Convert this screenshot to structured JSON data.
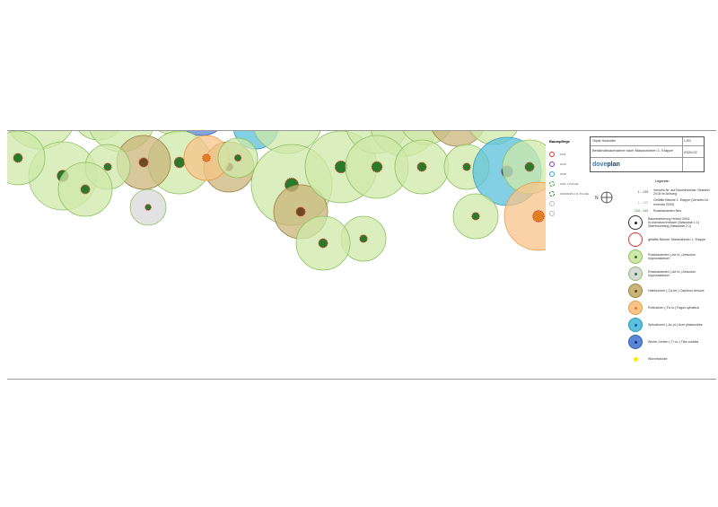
{
  "tree_care": {
    "title": "Baumpflege",
    "items": [
      {
        "label": "2011",
        "color": "#e03030"
      },
      {
        "label": "2016",
        "color": "#7040b0"
      },
      {
        "label": "2018",
        "color": "#30a0e0"
      },
      {
        "label": "2021 1.Priorität",
        "color": "#30a030"
      },
      {
        "label": "2023/2025 2./3. Priorität",
        "color": "#207020"
      },
      {
        "label": "",
        "color": "#bbbbbb"
      },
      {
        "label": "",
        "color": "#bbbbbb"
      }
    ]
  },
  "title_block": {
    "object": "Objekt: Baumallee",
    "title": "Bestandesaufnahme nach Massnahmen 1. Etappe",
    "scale": "1:200",
    "plan_no": "0320-02",
    "brand": "doveplan",
    "brand_accent": "dove",
    "brand_rest": "plan"
  },
  "north_label": "N",
  "legend": {
    "title": "Legende:",
    "refs": [
      {
        "range": "1 - 133",
        "text": "Verweis-Nr. auf Bauminventar, Bestand 2018 im Anhang",
        "color": "#333333"
      },
      {
        "range": "1 - 133",
        "text": "Gefällte Bäume 1. Etappe (Verweis-Nr. Inventar 2009)",
        "color": "#999999"
      },
      {
        "range": "134 - 143",
        "text": "Rosskastanien Neu",
        "color": "#2a6a2a"
      }
    ],
    "items": [
      {
        "label": "Baumkartierung Herbst 2004: Kronendurchmesser (Massstab 1:1) Stammumfang (Massstab 2:1)",
        "fill": "#ffffff",
        "stroke": "#333333",
        "dot": "#222222"
      },
      {
        "label": "gefällte Bäume: Massnahmen 1. Etappe",
        "fill": "#ffffff",
        "stroke": "#e03030",
        "dot": "#ffffff"
      },
      {
        "label": "Rosskastanien (-Ae hi-) Aesculus hippocastanum",
        "fill": "#cfe8a8",
        "stroke": "#8cc060",
        "dot": "#2a7a2a"
      },
      {
        "label": "Rosskastanien (-Ae hi-) Aesculus hippocastanum",
        "fill": "#d8d8d8",
        "stroke": "#8cc060",
        "dot": "#2a7a2a"
      },
      {
        "label": "Hainbuchen (-Ca be-) Carpinus betulus",
        "fill": "#c9b47a",
        "stroke": "#9a8040",
        "dot": "#6a4a20"
      },
      {
        "label": "Rotbuchen (-Fa sl-) Fagus sylvatica",
        "fill": "#f7c48a",
        "stroke": "#e89a40",
        "dot": "#e08020"
      },
      {
        "label": "Spitzahorne (-Ac pl-) Acer platanoides",
        "fill": "#5ac0dc",
        "stroke": "#2a98c0",
        "dot": "#1060a0"
      },
      {
        "label": "Winter-Linden (-Ti co-) Tilia cordata",
        "fill": "#5a86d8",
        "stroke": "#3060b0",
        "dot": "#10306a"
      },
      {
        "label": "Wurzelstöcke",
        "fill": "#ffee00",
        "stroke": "#ffee00",
        "dot": "#ffee00",
        "small": true
      }
    ]
  }
}
